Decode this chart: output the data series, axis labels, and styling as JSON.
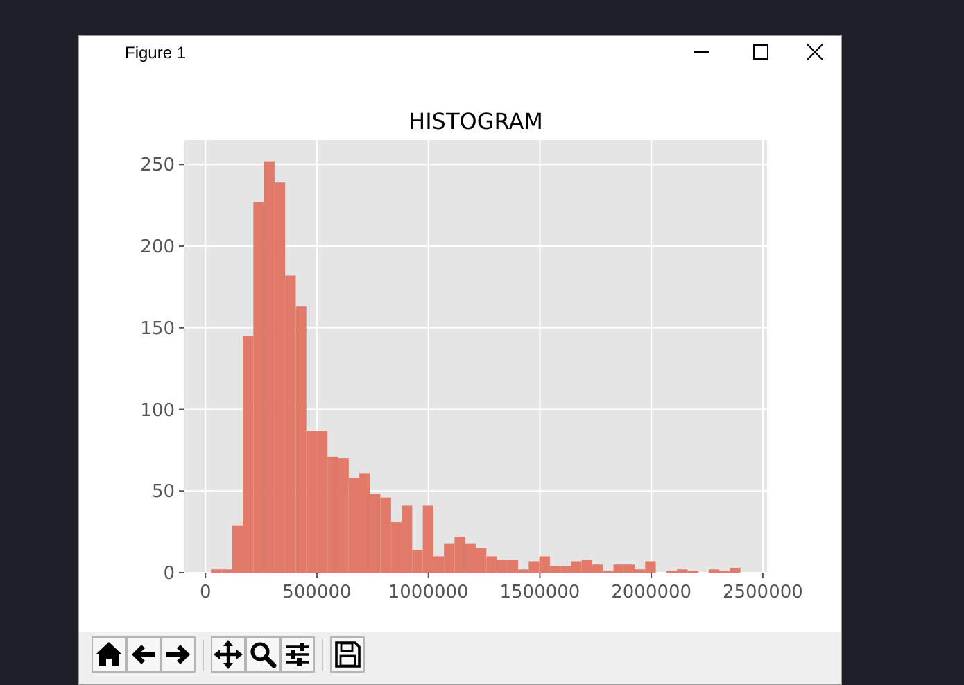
{
  "chart_data": {
    "type": "histogram",
    "title": "HISTOGRAM",
    "annotations": [
      "Figure 1"
    ],
    "bins": [
      25000,
      72500,
      120000,
      167500,
      215000,
      262500,
      310000,
      357500,
      405000,
      452500,
      500000,
      547500,
      595000,
      642500,
      690000,
      737500,
      785000,
      832500,
      880000,
      927500,
      975000,
      1022500,
      1070000,
      1117500,
      1165000,
      1212500,
      1260000,
      1307500,
      1355000,
      1402500,
      1450000,
      1497500,
      1545000,
      1592500,
      1640000,
      1687500,
      1735000,
      1782500,
      1830000,
      1877500,
      1925000,
      1972500,
      2020000,
      2067500,
      2115000,
      2162500,
      2210000,
      2257500,
      2305000,
      2352500,
      2400000
    ],
    "values": [
      2,
      2,
      29,
      145,
      227,
      252,
      239,
      182,
      163,
      87,
      87,
      71,
      70,
      58,
      61,
      48,
      46,
      31,
      41,
      14,
      41,
      10,
      18,
      22,
      18,
      15,
      10,
      8,
      8,
      2,
      7,
      10,
      4,
      4,
      7,
      8,
      5,
      1,
      5,
      5,
      2,
      7,
      0,
      1,
      2,
      1,
      0,
      2,
      1,
      3
    ],
    "color": "#e17a69",
    "xlim": [
      -94000,
      2519000
    ],
    "ylim": [
      0,
      265
    ],
    "xticks": [
      0,
      500000,
      1000000,
      1500000,
      2000000,
      2500000
    ],
    "yticks": [
      0,
      50,
      100,
      150,
      200,
      250
    ],
    "grid": true
  }
}
